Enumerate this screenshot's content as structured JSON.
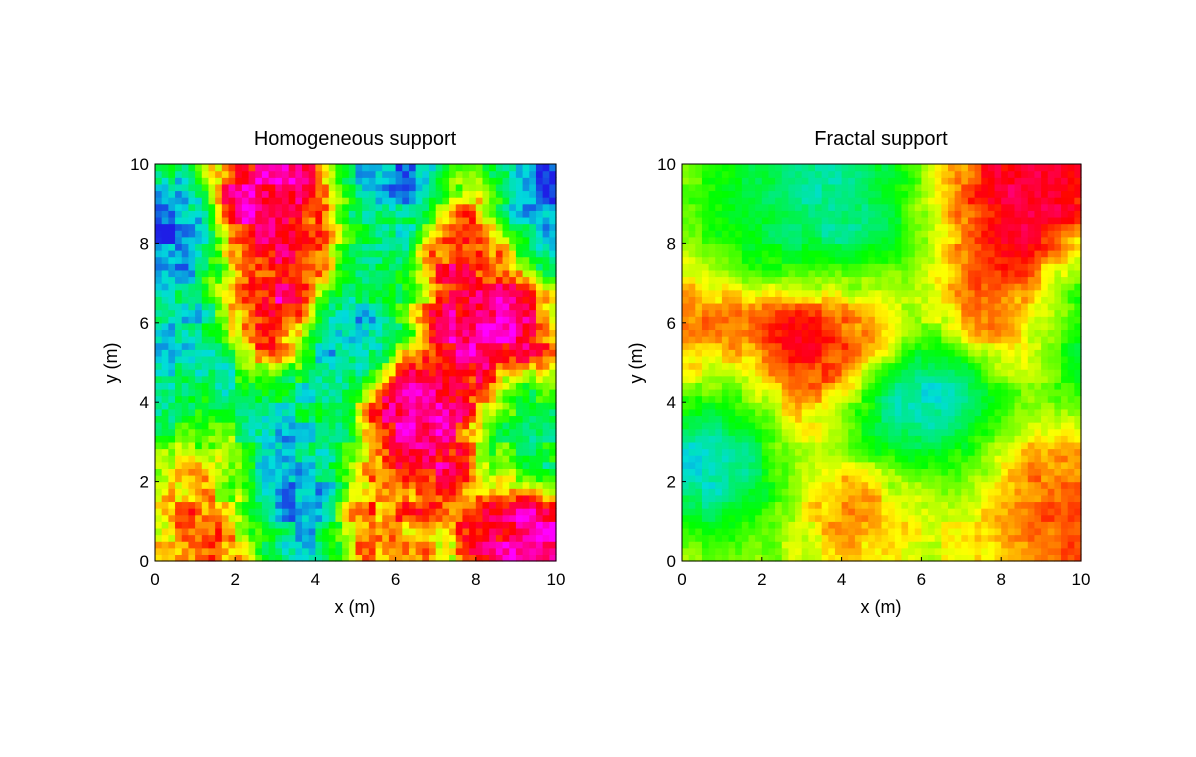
{
  "chart_data": [
    {
      "type": "heatmap",
      "title": "Homogeneous support",
      "xlabel": "x (m)",
      "ylabel": "y (m)",
      "xlim": [
        0,
        10
      ],
      "ylim": [
        0,
        10
      ],
      "xticks": [
        "0",
        "2",
        "4",
        "6",
        "8",
        "10"
      ],
      "yticks": [
        "0",
        "2",
        "4",
        "6",
        "8",
        "10"
      ],
      "colormap": [
        "#1e1ee6",
        "#00dcdc",
        "#00ff00",
        "#ffff00",
        "#ff0000",
        "#ff00ff"
      ],
      "grid": false,
      "field_character": "fine-grained, homogeneous mottled pattern",
      "blobs": [
        {
          "x": 2.8,
          "y": 9.0,
          "v": 1.0
        },
        {
          "x": 2.6,
          "y": 5.9,
          "v": 1.0
        },
        {
          "x": 3.6,
          "y": 8.4,
          "v": 0.9
        },
        {
          "x": 6.2,
          "y": 3.9,
          "v": 1.0
        },
        {
          "x": 7.2,
          "y": 3.4,
          "v": 1.0
        },
        {
          "x": 8.3,
          "y": 5.8,
          "v": 1.0
        },
        {
          "x": 7.9,
          "y": 8.3,
          "v": 0.9
        },
        {
          "x": 9.2,
          "y": 0.8,
          "v": 1.0
        },
        {
          "x": 6.0,
          "y": 1.2,
          "v": 0.75
        },
        {
          "x": 1.9,
          "y": 0.7,
          "v": 0.8
        },
        {
          "x": 1.2,
          "y": 2.4,
          "v": 0.7
        },
        {
          "x": 9.0,
          "y": 3.2,
          "v": 0.7
        },
        {
          "x": 9.2,
          "y": 3.1,
          "v": 0.0
        },
        {
          "x": 9.4,
          "y": 9.0,
          "v": 0.0
        },
        {
          "x": 6.1,
          "y": 9.4,
          "v": 0.05
        },
        {
          "x": 0.2,
          "y": 8.3,
          "v": 0.0
        },
        {
          "x": 1.3,
          "y": 5.4,
          "v": 0.05
        },
        {
          "x": 3.0,
          "y": 1.2,
          "v": 0.05
        },
        {
          "x": 3.2,
          "y": 2.4,
          "v": 0.1
        },
        {
          "x": 4.8,
          "y": 5.3,
          "v": 0.1
        },
        {
          "x": 4.1,
          "y": 3.6,
          "v": 0.25
        },
        {
          "x": 0.6,
          "y": 3.4,
          "v": 0.3
        },
        {
          "x": 5.2,
          "y": 8.2,
          "v": 0.3
        },
        {
          "x": 2.0,
          "y": 4.2,
          "v": 0.3
        }
      ]
    },
    {
      "type": "heatmap",
      "title": "Fractal support",
      "xlabel": "x (m)",
      "ylabel": "y (m)",
      "xlim": [
        0,
        10
      ],
      "ylim": [
        0,
        10
      ],
      "xticks": [
        "0",
        "2",
        "4",
        "6",
        "8",
        "10"
      ],
      "yticks": [
        "0",
        "2",
        "4",
        "6",
        "8",
        "10"
      ],
      "colormap": [
        "#1e1ee6",
        "#00dcdc",
        "#00ff00",
        "#ffff00",
        "#ff0000",
        "#ff00ff"
      ],
      "grid": false,
      "field_character": "smooth, clustered pattern with large coherent patches",
      "blobs": [
        {
          "x": 3.0,
          "y": 5.2,
          "v": 1.0
        },
        {
          "x": 4.4,
          "y": 5.6,
          "v": 0.85
        },
        {
          "x": 7.5,
          "y": 8.8,
          "v": 1.0
        },
        {
          "x": 8.5,
          "y": 6.2,
          "v": 1.0
        },
        {
          "x": 8.7,
          "y": 9.7,
          "v": 0.9
        },
        {
          "x": 4.6,
          "y": 1.8,
          "v": 1.0
        },
        {
          "x": 8.3,
          "y": 2.0,
          "v": 0.8
        },
        {
          "x": 0.3,
          "y": 5.0,
          "v": 0.8
        },
        {
          "x": 2.6,
          "y": 3.8,
          "v": 0.75
        },
        {
          "x": 9.7,
          "y": 0.7,
          "v": 0.75
        },
        {
          "x": 0.4,
          "y": 0.5,
          "v": 0.7
        },
        {
          "x": 0.5,
          "y": 1.7,
          "v": 0.0
        },
        {
          "x": 1.3,
          "y": 3.6,
          "v": 0.0
        },
        {
          "x": 6.2,
          "y": 3.9,
          "v": 0.0
        },
        {
          "x": 5.0,
          "y": 3.3,
          "v": 0.05
        },
        {
          "x": 4.2,
          "y": 8.6,
          "v": 0.1
        },
        {
          "x": 9.6,
          "y": 6.0,
          "v": 0.1
        },
        {
          "x": 2.6,
          "y": 8.2,
          "v": 0.35
        },
        {
          "x": 6.4,
          "y": 9.2,
          "v": 0.4
        },
        {
          "x": 5.2,
          "y": 7.2,
          "v": 0.45
        },
        {
          "x": 7.0,
          "y": 2.5,
          "v": 0.4
        },
        {
          "x": 6.0,
          "y": 0.6,
          "v": 0.55
        },
        {
          "x": 3.2,
          "y": 0.4,
          "v": 0.5
        }
      ]
    }
  ]
}
